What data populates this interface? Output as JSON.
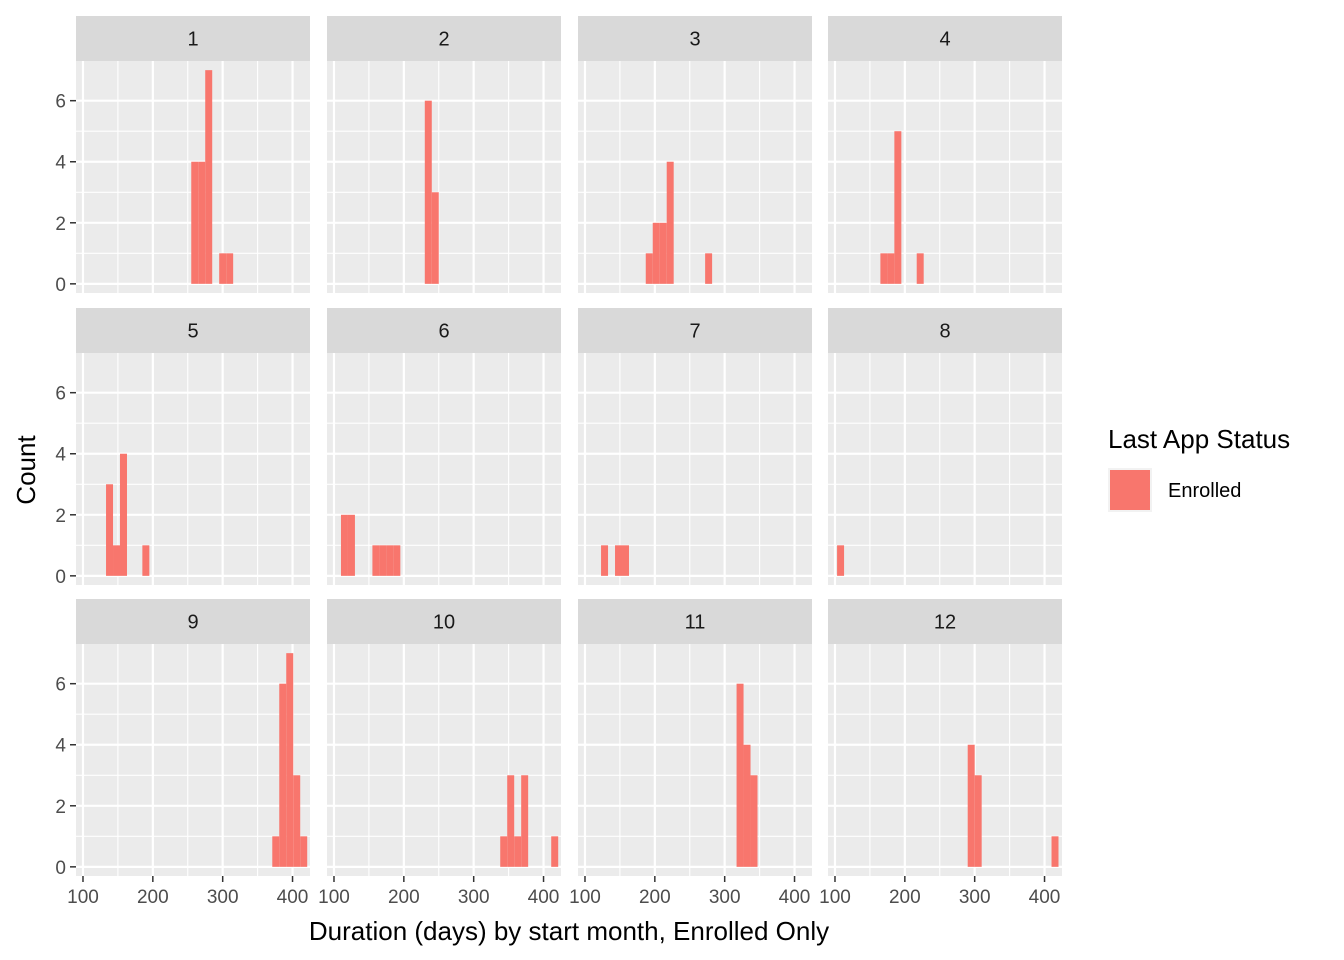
{
  "chart_data": {
    "type": "bar",
    "subtype": "faceted-histogram",
    "xlabel": "Duration (days) by start month, Enrolled Only",
    "ylabel": "Count",
    "xlim": [
      90,
      425
    ],
    "ylim": [
      -0.3,
      7.3
    ],
    "x_ticks": [
      100,
      200,
      300,
      400
    ],
    "y_ticks": [
      0,
      2,
      4,
      6
    ],
    "bin_width": 10,
    "grid": true,
    "fill_color": "#F8766D",
    "panel_background": "#EBEBEB",
    "strip_background": "#D9D9D9",
    "legend": {
      "title": "Last App Status",
      "position": "right",
      "items": [
        {
          "label": "Enrolled",
          "color": "#F8766D"
        }
      ]
    },
    "facets": [
      {
        "label": "1",
        "bins": [
          {
            "x0": 255,
            "x1": 265,
            "count": 4
          },
          {
            "x0": 265,
            "x1": 275,
            "count": 4
          },
          {
            "x0": 275,
            "x1": 285,
            "count": 7
          },
          {
            "x0": 295,
            "x1": 305,
            "count": 1
          },
          {
            "x0": 305,
            "x1": 315,
            "count": 1
          }
        ]
      },
      {
        "label": "2",
        "bins": [
          {
            "x0": 230,
            "x1": 240,
            "count": 6
          },
          {
            "x0": 240,
            "x1": 250,
            "count": 3
          }
        ]
      },
      {
        "label": "3",
        "bins": [
          {
            "x0": 187,
            "x1": 197,
            "count": 1
          },
          {
            "x0": 197,
            "x1": 207,
            "count": 2
          },
          {
            "x0": 207,
            "x1": 217,
            "count": 2
          },
          {
            "x0": 217,
            "x1": 227,
            "count": 4
          },
          {
            "x0": 272,
            "x1": 282,
            "count": 1
          }
        ]
      },
      {
        "label": "4",
        "bins": [
          {
            "x0": 165,
            "x1": 175,
            "count": 1
          },
          {
            "x0": 175,
            "x1": 185,
            "count": 1
          },
          {
            "x0": 185,
            "x1": 195,
            "count": 5
          },
          {
            "x0": 217,
            "x1": 227,
            "count": 1
          }
        ]
      },
      {
        "label": "5",
        "bins": [
          {
            "x0": 133,
            "x1": 143,
            "count": 3
          },
          {
            "x0": 143,
            "x1": 153,
            "count": 1
          },
          {
            "x0": 153,
            "x1": 163,
            "count": 4
          },
          {
            "x0": 185,
            "x1": 195,
            "count": 1
          }
        ]
      },
      {
        "label": "6",
        "bins": [
          {
            "x0": 110,
            "x1": 120,
            "count": 2
          },
          {
            "x0": 120,
            "x1": 130,
            "count": 2
          },
          {
            "x0": 155,
            "x1": 165,
            "count": 1
          },
          {
            "x0": 165,
            "x1": 175,
            "count": 1
          },
          {
            "x0": 175,
            "x1": 185,
            "count": 1
          },
          {
            "x0": 185,
            "x1": 195,
            "count": 1
          }
        ]
      },
      {
        "label": "7",
        "bins": [
          {
            "x0": 123,
            "x1": 133,
            "count": 1
          },
          {
            "x0": 143,
            "x1": 153,
            "count": 1
          },
          {
            "x0": 153,
            "x1": 163,
            "count": 1
          }
        ]
      },
      {
        "label": "8",
        "bins": [
          {
            "x0": 103,
            "x1": 113,
            "count": 1
          }
        ]
      },
      {
        "label": "9",
        "bins": [
          {
            "x0": 371,
            "x1": 381,
            "count": 1
          },
          {
            "x0": 381,
            "x1": 391,
            "count": 6
          },
          {
            "x0": 391,
            "x1": 401,
            "count": 7
          },
          {
            "x0": 401,
            "x1": 411,
            "count": 3
          },
          {
            "x0": 411,
            "x1": 421,
            "count": 1
          }
        ]
      },
      {
        "label": "10",
        "bins": [
          {
            "x0": 338,
            "x1": 348,
            "count": 1
          },
          {
            "x0": 348,
            "x1": 358,
            "count": 3
          },
          {
            "x0": 358,
            "x1": 368,
            "count": 1
          },
          {
            "x0": 368,
            "x1": 378,
            "count": 3
          },
          {
            "x0": 411,
            "x1": 421,
            "count": 1
          }
        ]
      },
      {
        "label": "11",
        "bins": [
          {
            "x0": 317,
            "x1": 327,
            "count": 6
          },
          {
            "x0": 327,
            "x1": 337,
            "count": 4
          },
          {
            "x0": 337,
            "x1": 347,
            "count": 3
          }
        ]
      },
      {
        "label": "12",
        "bins": [
          {
            "x0": 290,
            "x1": 300,
            "count": 4
          },
          {
            "x0": 300,
            "x1": 310,
            "count": 3
          },
          {
            "x0": 410,
            "x1": 420,
            "count": 1
          }
        ]
      }
    ]
  }
}
